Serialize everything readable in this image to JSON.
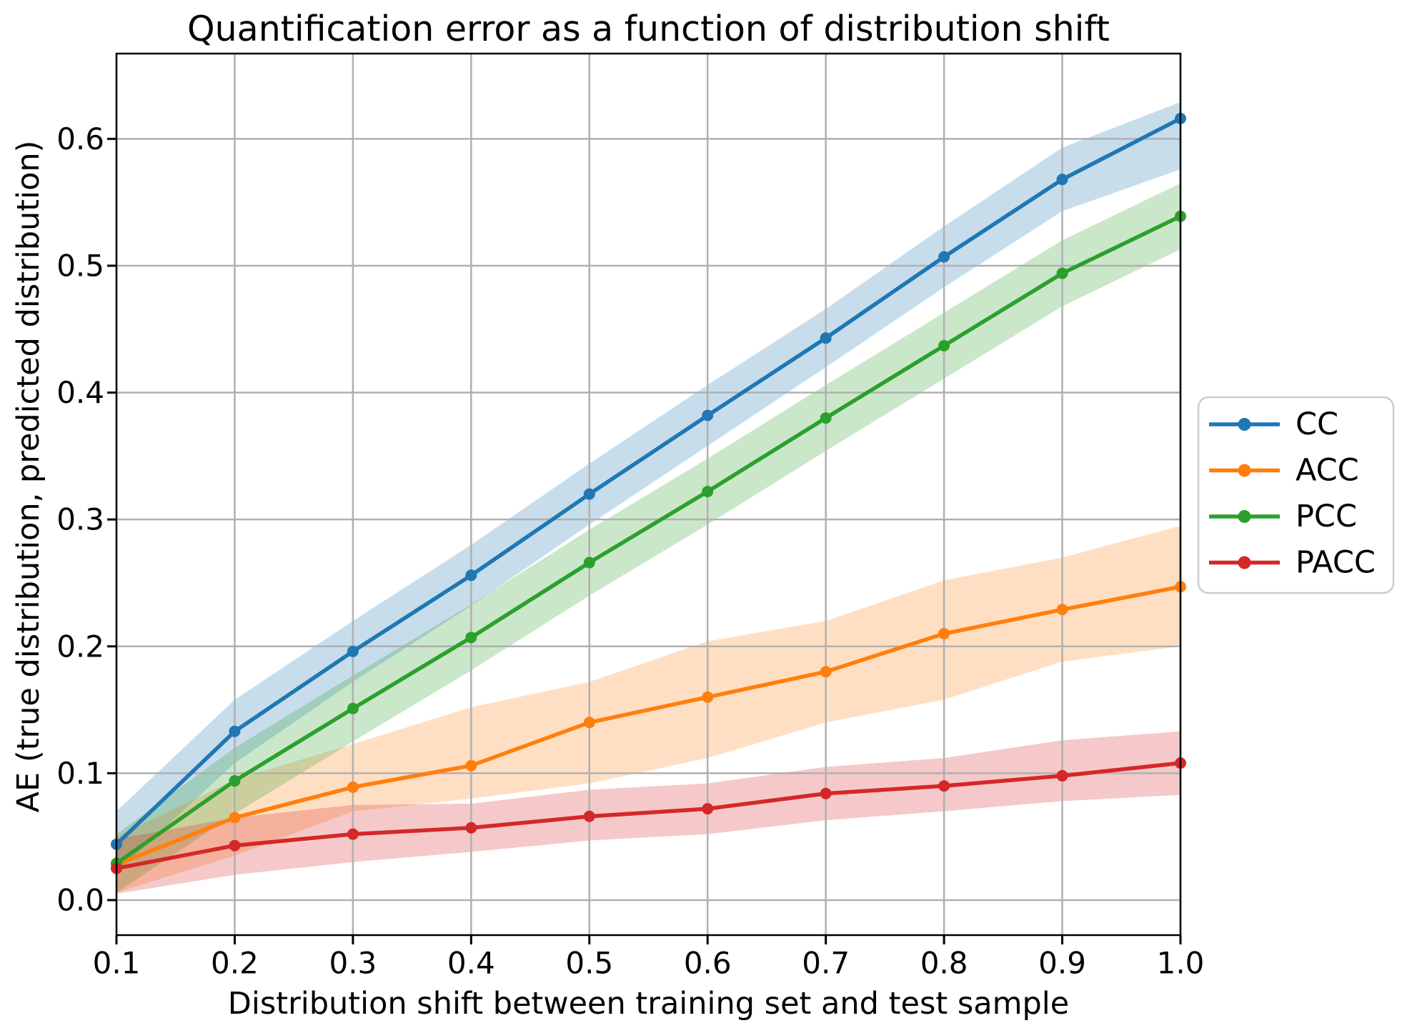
{
  "chart_data": {
    "type": "line",
    "title": "Quantification error as a function of distribution shift",
    "xlabel": "Distribution shift between training set and test sample",
    "ylabel": "AE (true distribution, predicted distribution)",
    "x": [
      0.1,
      0.2,
      0.3,
      0.4,
      0.5,
      0.6,
      0.7,
      0.8,
      0.9,
      1.0
    ],
    "xlim": [
      0.1,
      1.0
    ],
    "ylim": [
      -0.0276,
      0.6672
    ],
    "xticks": [
      0.1,
      0.2,
      0.3,
      0.4,
      0.5,
      0.6,
      0.7,
      0.8,
      0.9,
      1.0
    ],
    "xtick_labels": [
      "0.1",
      "0.2",
      "0.3",
      "0.4",
      "0.5",
      "0.6",
      "0.7",
      "0.8",
      "0.9",
      "1.0"
    ],
    "yticks": [
      0.0,
      0.1,
      0.2,
      0.3,
      0.4,
      0.5,
      0.6
    ],
    "ytick_labels": [
      "0.0",
      "0.1",
      "0.2",
      "0.3",
      "0.4",
      "0.5",
      "0.6"
    ],
    "grid": true,
    "grid_color": "#b0b0b0",
    "band_opacity": 0.25,
    "legend_position": "center-right-outside",
    "series": [
      {
        "name": "CC",
        "color": "#1f77b4",
        "values": [
          0.044,
          0.133,
          0.196,
          0.256,
          0.32,
          0.382,
          0.443,
          0.507,
          0.568,
          0.616
        ],
        "band_low": [
          0.022,
          0.108,
          0.172,
          0.232,
          0.296,
          0.358,
          0.42,
          0.483,
          0.543,
          0.576
        ],
        "band_high": [
          0.07,
          0.158,
          0.22,
          0.28,
          0.344,
          0.406,
          0.466,
          0.531,
          0.593,
          0.629
        ]
      },
      {
        "name": "ACC",
        "color": "#ff7f0e",
        "values": [
          0.028,
          0.065,
          0.089,
          0.106,
          0.14,
          0.16,
          0.18,
          0.21,
          0.229,
          0.247
        ],
        "band_low": [
          0.006,
          0.035,
          0.07,
          0.08,
          0.092,
          0.112,
          0.14,
          0.158,
          0.188,
          0.2
        ],
        "band_high": [
          0.05,
          0.095,
          0.123,
          0.152,
          0.172,
          0.204,
          0.22,
          0.252,
          0.27,
          0.295
        ]
      },
      {
        "name": "PCC",
        "color": "#2ca02c",
        "values": [
          0.029,
          0.094,
          0.151,
          0.207,
          0.266,
          0.322,
          0.38,
          0.437,
          0.494,
          0.539
        ],
        "band_low": [
          0.006,
          0.068,
          0.125,
          0.181,
          0.24,
          0.296,
          0.354,
          0.411,
          0.468,
          0.513
        ],
        "band_high": [
          0.052,
          0.12,
          0.177,
          0.233,
          0.292,
          0.348,
          0.406,
          0.463,
          0.52,
          0.565
        ]
      },
      {
        "name": "PACC",
        "color": "#d62728",
        "values": [
          0.025,
          0.043,
          0.052,
          0.057,
          0.066,
          0.072,
          0.084,
          0.09,
          0.098,
          0.108
        ],
        "band_low": [
          0.005,
          0.02,
          0.03,
          0.038,
          0.047,
          0.052,
          0.063,
          0.07,
          0.078,
          0.083
        ],
        "band_high": [
          0.048,
          0.065,
          0.075,
          0.076,
          0.087,
          0.092,
          0.105,
          0.112,
          0.126,
          0.133
        ]
      }
    ]
  }
}
